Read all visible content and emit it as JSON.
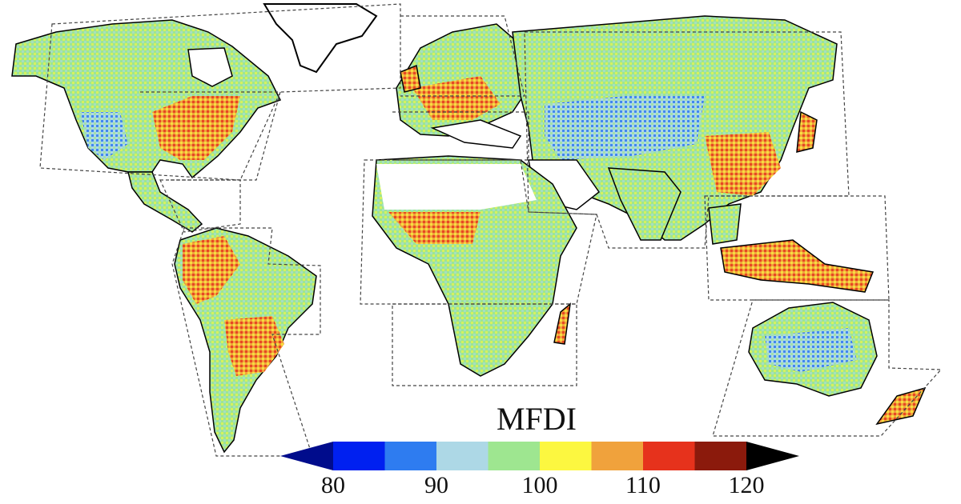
{
  "legend": {
    "title": "MFDI",
    "tick_labels": [
      "80",
      "90",
      "100",
      "110",
      "120"
    ],
    "tick_values": [
      80,
      90,
      100,
      110,
      120
    ],
    "bins": [
      {
        "from": null,
        "to": 80,
        "color": "#000c8c",
        "shape": "triangle"
      },
      {
        "from": 80,
        "to": 85,
        "color": "#0020f0"
      },
      {
        "from": 85,
        "to": 90,
        "color": "#2e7cf0"
      },
      {
        "from": 90,
        "to": 95,
        "color": "#add8e6"
      },
      {
        "from": 95,
        "to": 100,
        "color": "#9ee690"
      },
      {
        "from": 100,
        "to": 105,
        "color": "#fcf740"
      },
      {
        "from": 105,
        "to": 110,
        "color": "#f0a23c"
      },
      {
        "from": 110,
        "to": 115,
        "color": "#e6321c"
      },
      {
        "from": 115,
        "to": 120,
        "color": "#8b1a0c"
      },
      {
        "from": 120,
        "to": null,
        "color": "#000000",
        "shape": "triangle"
      }
    ]
  },
  "map": {
    "projection": "equirectangular",
    "regions_outlined": true,
    "land_colors": {
      "dominant": "#9ee690",
      "warm": [
        "#fcf740",
        "#f0a23c",
        "#e6321c",
        "#8b1a0c"
      ],
      "cool": [
        "#add8e6",
        "#2e7cf0",
        "#0020f0"
      ],
      "no_data": "#ffffff",
      "coast": "#000000"
    }
  }
}
